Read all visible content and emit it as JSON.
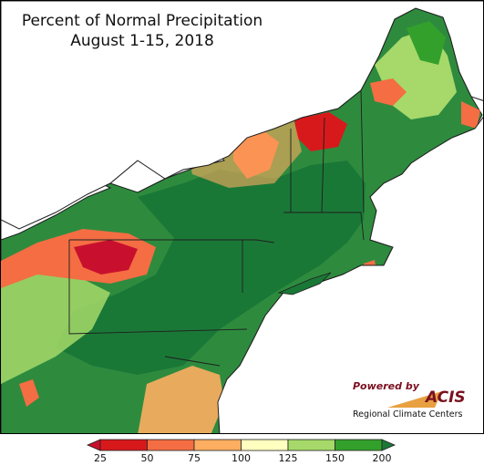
{
  "title": {
    "line1": "Percent of Normal Precipitation",
    "line2": "August 1-15, 2018"
  },
  "logo": {
    "powered_by": "Powered by",
    "name": "ACIS",
    "subtitle": "Regional Climate Centers"
  },
  "legend": {
    "ticks": [
      "25",
      "50",
      "75",
      "100",
      "125",
      "150",
      "200"
    ],
    "bins": [
      {
        "range": "<25",
        "color": "#c8102e"
      },
      {
        "range": "25-50",
        "color": "#d7191c"
      },
      {
        "range": "50-75",
        "color": "#f46d43"
      },
      {
        "range": "75-100",
        "color": "#fdae61"
      },
      {
        "range": "100-125",
        "color": "#ffffbf"
      },
      {
        "range": "125-150",
        "color": "#a6d96a"
      },
      {
        "range": "150-200",
        "color": "#33a02c"
      },
      {
        "range": ">200",
        "color": "#1a7837"
      }
    ]
  },
  "colors": {
    "very_dry": "#c8102e",
    "dry": "#f46d43",
    "slightly_dry": "#fdae61",
    "near_normal": "#ffffbf",
    "wet": "#a6d96a",
    "very_wet": "#33a02c",
    "extreme_wet": "#1a7837",
    "water": "#ffffff"
  }
}
